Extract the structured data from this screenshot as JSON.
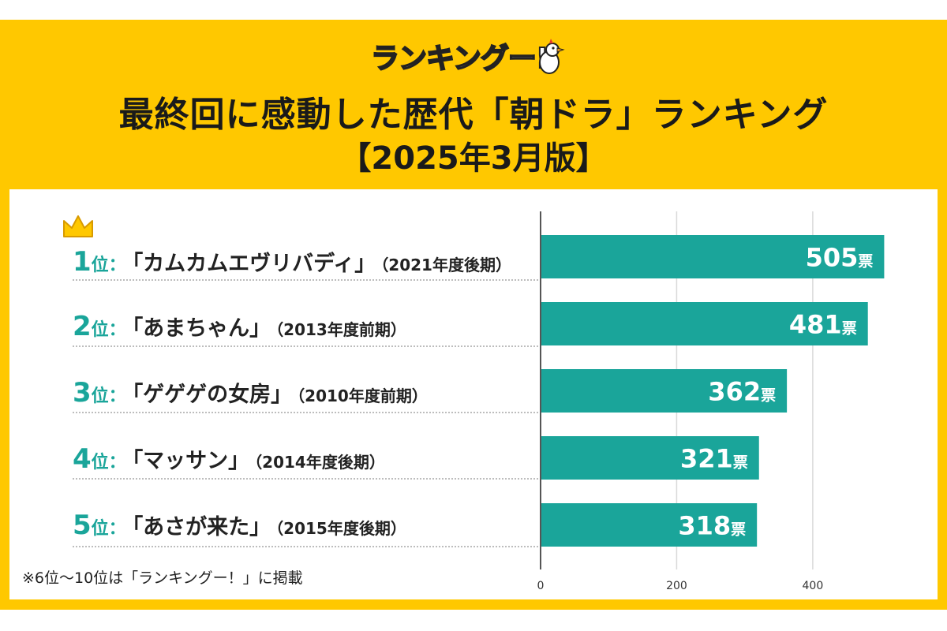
{
  "logo": {
    "text": "ランキングー!"
  },
  "header": {
    "title": "最終回に感動した歴代「朝ドラ」ランキング",
    "subtitle": "【2025年3月版】"
  },
  "rankings": [
    {
      "rank": "1",
      "suffix": "位：",
      "title": "「カムカムエヴリバディ」",
      "period": "（2021年度後期）"
    },
    {
      "rank": "2",
      "suffix": "位：",
      "title": "「あまちゃん」",
      "period": "（2013年度前期）"
    },
    {
      "rank": "3",
      "suffix": "位：",
      "title": "「ゲゲゲの女房」",
      "period": "（2010年度前期）"
    },
    {
      "rank": "4",
      "suffix": "位：",
      "title": "「マッサン」",
      "period": "（2014年度後期）"
    },
    {
      "rank": "5",
      "suffix": "位：",
      "title": "「あさが来た」",
      "period": "（2015年度後期）"
    }
  ],
  "footnote": "※6位〜10位は「ランキングー！」に掲載",
  "chart_data": {
    "type": "bar",
    "orientation": "horizontal",
    "categories": [
      "カムカムエヴリバディ",
      "あまちゃん",
      "ゲゲゲの女房",
      "マッサン",
      "あさが来た"
    ],
    "values": [
      505,
      481,
      362,
      321,
      318
    ],
    "value_unit": "票",
    "xlim": [
      0,
      500
    ],
    "xticks": [
      0,
      200,
      400
    ],
    "grid": true,
    "colors": {
      "bar": "#1AA59A",
      "grid": "#d9d9d9",
      "axis": "#555555",
      "frame": "#FFC800"
    }
  }
}
